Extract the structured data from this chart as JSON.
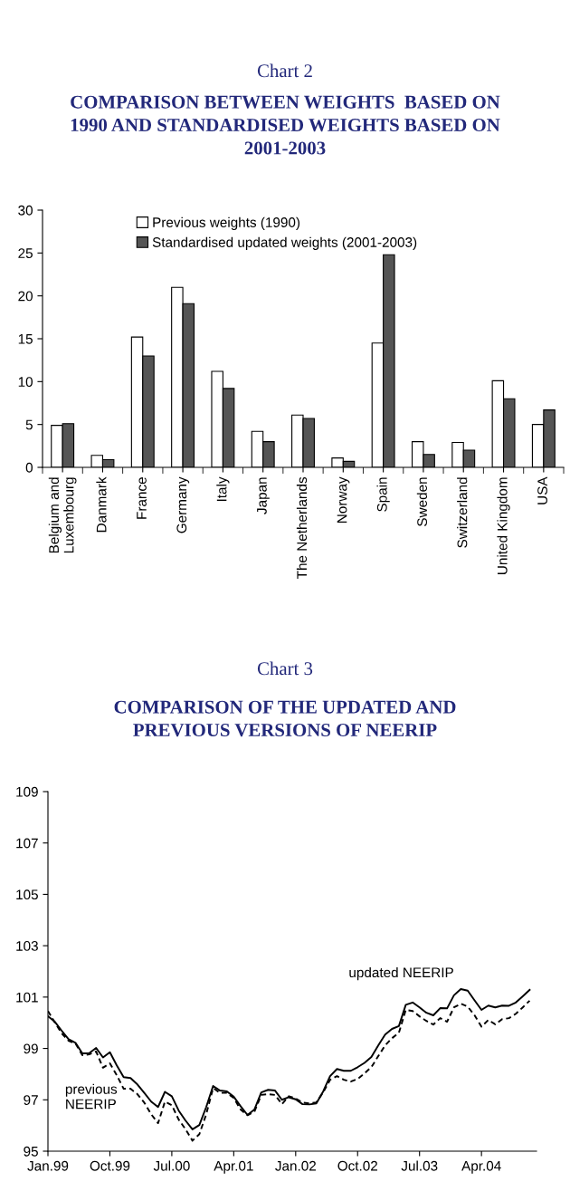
{
  "chart_data": [
    {
      "type": "bar",
      "title": "Chart 2",
      "subtitle": "COMPARISON BETWEEN WEIGHTS  BASED ON\n1990 AND STANDARDISED WEIGHTS BASED ON\n2001-2003",
      "categories": [
        "Belgium and\nLuxembourg",
        "Danmark",
        "France",
        "Germany",
        "Italy",
        "Japan",
        "The Netherlands",
        "Norway",
        "Spain",
        "Sweden",
        "Switzerland",
        "United Kingdom",
        "USA"
      ],
      "series": [
        {
          "name": "Previous weights (1990)",
          "color": "#ffffff",
          "values": [
            4.9,
            1.4,
            15.2,
            21.0,
            11.2,
            4.2,
            6.1,
            1.1,
            14.5,
            3.0,
            2.9,
            10.1,
            5.0
          ]
        },
        {
          "name": "Standardised updated weights (2001-2003)",
          "color": "#555555",
          "values": [
            5.1,
            0.9,
            13.0,
            19.1,
            9.2,
            3.0,
            5.7,
            0.7,
            24.8,
            1.5,
            2.0,
            8.0,
            6.7
          ]
        }
      ],
      "ylim": [
        0,
        30
      ],
      "yticks": [
        0,
        5,
        10,
        15,
        20,
        25,
        30
      ],
      "grid": false,
      "legend": "top"
    },
    {
      "type": "line",
      "title": "Chart 3",
      "subtitle": "COMPARISON OF THE UPDATED AND\nPREVIOUS VERSIONS OF NEERIP",
      "x": [
        "1999-01",
        "1999-02",
        "1999-03",
        "1999-04",
        "1999-05",
        "1999-06",
        "1999-07",
        "1999-08",
        "1999-09",
        "1999-10",
        "1999-11",
        "1999-12",
        "2000-01",
        "2000-02",
        "2000-03",
        "2000-04",
        "2000-05",
        "2000-06",
        "2000-07",
        "2000-08",
        "2000-09",
        "2000-10",
        "2000-11",
        "2000-12",
        "2001-01",
        "2001-02",
        "2001-03",
        "2001-04",
        "2001-05",
        "2001-06",
        "2001-07",
        "2001-08",
        "2001-09",
        "2001-10",
        "2001-11",
        "2001-12",
        "2002-01",
        "2002-02",
        "2002-03",
        "2002-04",
        "2002-05",
        "2002-06",
        "2002-07",
        "2002-08",
        "2002-09",
        "2002-10",
        "2002-11",
        "2002-12",
        "2003-01",
        "2003-02",
        "2003-03",
        "2003-04",
        "2003-05",
        "2003-06",
        "2003-07",
        "2003-08",
        "2003-09",
        "2003-10",
        "2003-11",
        "2003-12",
        "2004-01",
        "2004-02",
        "2004-03",
        "2004-04",
        "2004-05",
        "2004-06",
        "2004-07",
        "2004-08",
        "2004-09",
        "2004-10",
        "2004-11"
      ],
      "series": [
        {
          "name": "updated NEERIP",
          "color": "#000000",
          "line_style": "solid",
          "values": [
            100.25,
            100.04,
            99.69,
            99.36,
            99.22,
            98.81,
            98.82,
            99.02,
            98.65,
            98.85,
            98.34,
            97.88,
            97.85,
            97.6,
            97.27,
            96.93,
            96.72,
            97.31,
            97.14,
            96.58,
            96.19,
            95.85,
            96.02,
            96.72,
            97.54,
            97.36,
            97.33,
            97.12,
            96.75,
            96.41,
            96.62,
            97.29,
            97.39,
            97.36,
            97.0,
            97.1,
            97.02,
            96.83,
            96.82,
            96.86,
            97.33,
            97.92,
            98.2,
            98.13,
            98.13,
            98.27,
            98.44,
            98.67,
            99.12,
            99.54,
            99.76,
            99.87,
            100.7,
            100.79,
            100.6,
            100.39,
            100.29,
            100.57,
            100.56,
            101.07,
            101.31,
            101.25,
            100.87,
            100.5,
            100.67,
            100.6,
            100.67,
            100.66,
            100.79,
            101.03,
            101.28
          ]
        },
        {
          "name": "previous\nNEERIP",
          "color": "#000000",
          "line_style": "dashed",
          "values": [
            100.46,
            100.01,
            99.59,
            99.3,
            99.19,
            98.74,
            98.77,
            98.88,
            98.25,
            98.42,
            97.96,
            97.43,
            97.43,
            97.22,
            96.89,
            96.44,
            96.09,
            96.93,
            96.79,
            96.23,
            95.85,
            95.41,
            95.66,
            96.44,
            97.46,
            97.27,
            97.27,
            97.07,
            96.62,
            96.4,
            96.54,
            97.19,
            97.22,
            97.19,
            96.83,
            97.14,
            97.05,
            96.89,
            96.86,
            96.9,
            97.29,
            97.78,
            97.92,
            97.78,
            97.71,
            97.81,
            98.03,
            98.27,
            98.7,
            99.12,
            99.4,
            99.61,
            100.5,
            100.46,
            100.25,
            100.07,
            99.93,
            100.18,
            100.04,
            100.6,
            100.74,
            100.63,
            100.29,
            99.85,
            100.11,
            99.94,
            100.14,
            100.18,
            100.35,
            100.6,
            100.86
          ]
        }
      ],
      "xlim": [
        "1999-01",
        "2004-12"
      ],
      "xticks": [
        {
          "value": "1999-01",
          "label": "Jan.99"
        },
        {
          "value": "1999-10",
          "label": "Oct.99"
        },
        {
          "value": "2000-07",
          "label": "Jul.00"
        },
        {
          "value": "2001-04",
          "label": "Apr.01"
        },
        {
          "value": "2002-01",
          "label": "Jan.02"
        },
        {
          "value": "2002-10",
          "label": "Oct.02"
        },
        {
          "value": "2003-07",
          "label": "Jul.03"
        },
        {
          "value": "2004-04",
          "label": "Apr.04"
        }
      ],
      "ylim": [
        95,
        109
      ],
      "yticks": [
        95,
        97,
        99,
        101,
        103,
        105,
        107,
        109
      ],
      "grid": false,
      "legend": false
    }
  ]
}
